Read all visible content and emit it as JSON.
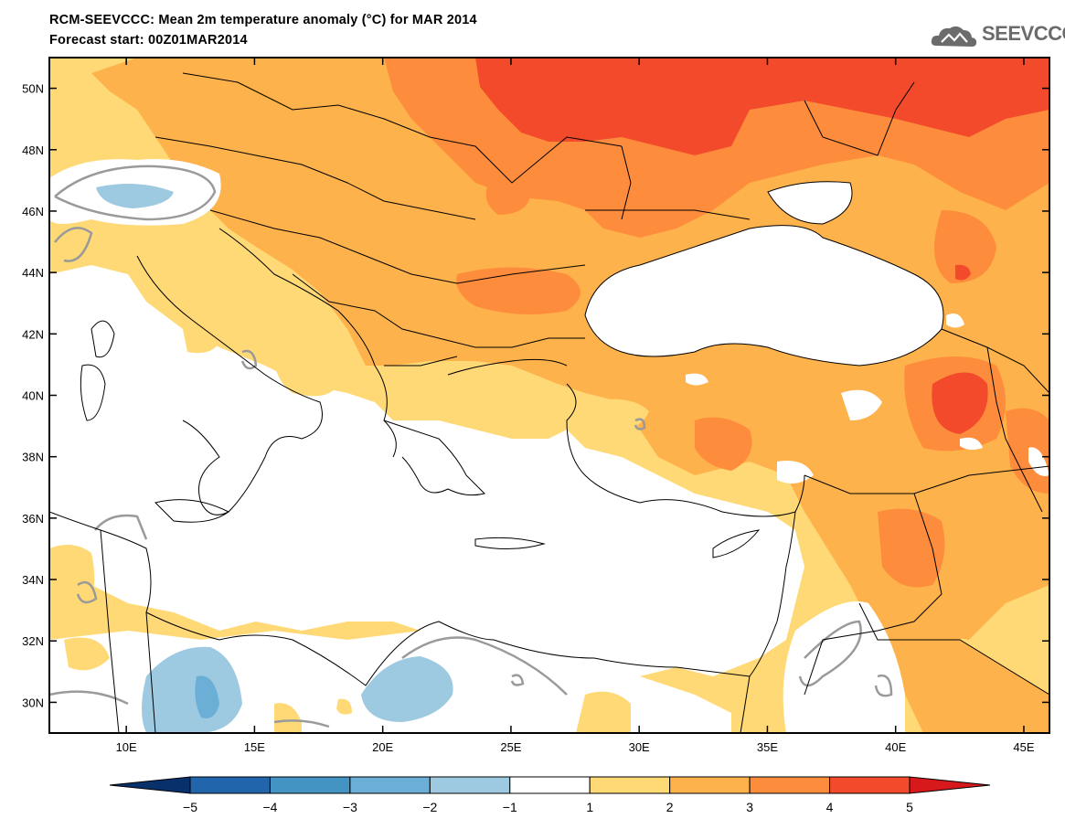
{
  "header": {
    "title": "RCM-SEEVCCC: Mean 2m temperature anomaly (°C) for MAR 2014",
    "forecast": "Forecast start: 00Z01MAR2014",
    "logo_text": "SEEVCCC",
    "logo_icon": "cloud-icon"
  },
  "map": {
    "lon_range": [
      7,
      46
    ],
    "lat_range": [
      29,
      51
    ],
    "lat_labels": [
      "50N",
      "48N",
      "46N",
      "44N",
      "42N",
      "40N",
      "38N",
      "36N",
      "34N",
      "32N",
      "30N"
    ],
    "lon_labels": [
      "10E",
      "15E",
      "20E",
      "25E",
      "30E",
      "35E",
      "40E",
      "45E"
    ]
  },
  "colorbar": {
    "labels": [
      "-5",
      "-4",
      "-3",
      "-2",
      "-1",
      "1",
      "2",
      "3",
      "4",
      "5"
    ],
    "colors": [
      "#08306b",
      "#2166ac",
      "#4393c3",
      "#6baed6",
      "#9ecae1",
      "#ffffff",
      "#fed976",
      "#feb24c",
      "#fd8d3c",
      "#f24a2a",
      "#d7191c"
    ]
  }
}
